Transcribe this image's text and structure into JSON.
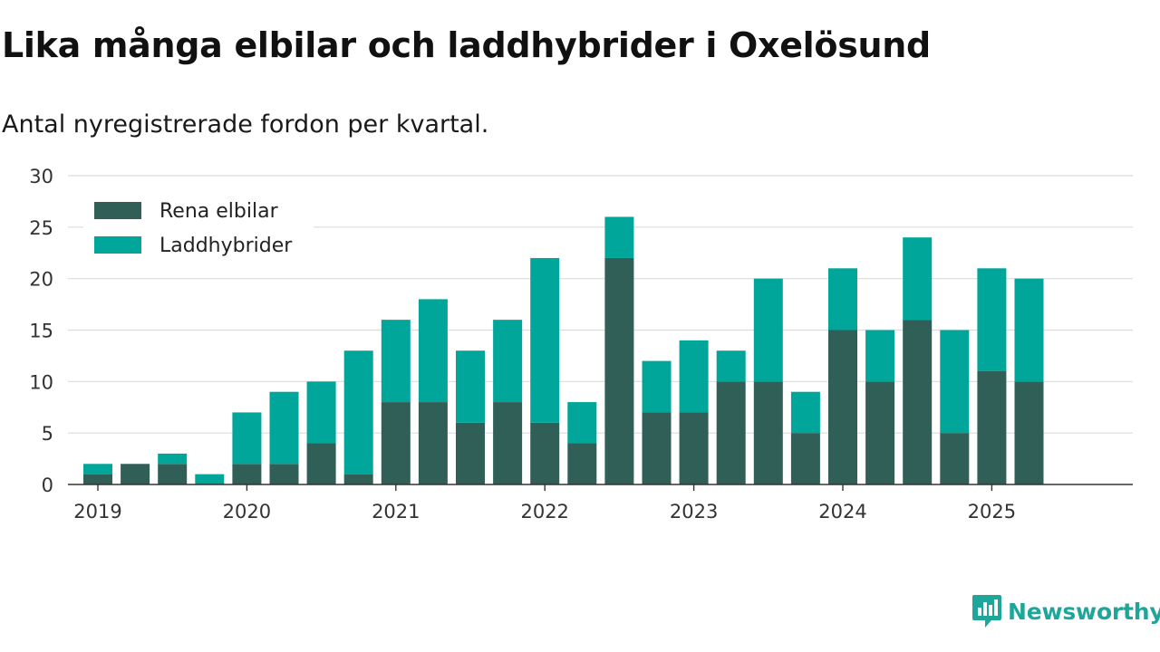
{
  "title": "Lika många elbilar och laddhybrider i Oxelösund",
  "subtitle": "Antal nyregistrerade fordon per kvartal.",
  "brand": {
    "name": "Newsworthy",
    "icon": "newsworthy-logo-icon",
    "color": "#1fa69b"
  },
  "chart_data": {
    "type": "bar",
    "stacked": true,
    "title": "Lika många elbilar och laddhybrider i Oxelösund",
    "subtitle": "Antal nyregistrerade fordon per kvartal.",
    "xlabel": "",
    "ylabel": "",
    "ylim": [
      0,
      30
    ],
    "yticks": [
      0,
      5,
      10,
      15,
      20,
      25,
      30
    ],
    "grid": true,
    "legend_position": "top-left",
    "xticks": [
      {
        "label": "2019",
        "at": 0
      },
      {
        "label": "2020",
        "at": 4
      },
      {
        "label": "2021",
        "at": 8
      },
      {
        "label": "2022",
        "at": 12
      },
      {
        "label": "2023",
        "at": 16
      },
      {
        "label": "2024",
        "at": 20
      },
      {
        "label": "2025",
        "at": 24
      }
    ],
    "categories": [
      "2019 Q1",
      "2019 Q2",
      "2019 Q3",
      "2019 Q4",
      "2020 Q1",
      "2020 Q2",
      "2020 Q3",
      "2020 Q4",
      "2021 Q1",
      "2021 Q2",
      "2021 Q3",
      "2021 Q4",
      "2022 Q1",
      "2022 Q2",
      "2022 Q3",
      "2022 Q4",
      "2023 Q1",
      "2023 Q2",
      "2023 Q3",
      "2023 Q4",
      "2024 Q1",
      "2024 Q2",
      "2024 Q3",
      "2024 Q4",
      "2025 Q1",
      "2025 Q2",
      "2025 Q3"
    ],
    "series": [
      {
        "name": "Rena elbilar",
        "color": "#305f58",
        "values": [
          1,
          2,
          2,
          0,
          2,
          2,
          4,
          1,
          8,
          8,
          6,
          8,
          6,
          4,
          22,
          7,
          7,
          10,
          10,
          5,
          15,
          10,
          16,
          5,
          11,
          10,
          0
        ]
      },
      {
        "name": "Laddhybrider",
        "color": "#00a699",
        "values": [
          1,
          0,
          1,
          1,
          5,
          7,
          6,
          12,
          8,
          10,
          7,
          8,
          16,
          4,
          4,
          5,
          7,
          3,
          10,
          4,
          6,
          5,
          8,
          10,
          10,
          10,
          0
        ]
      }
    ]
  }
}
